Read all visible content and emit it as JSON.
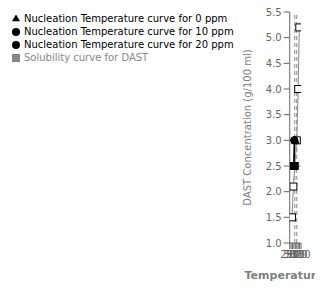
{
  "chart_data": {
    "type": "line",
    "title": "",
    "xlabel": "Temperature (K)",
    "ylabel": "DAST Concentration (g/100 ml)",
    "xlim": [
      290,
      330
    ],
    "ylim": [
      1.0,
      5.5
    ],
    "xticks": [
      290,
      {
        "value": 295,
        "label": ""
      },
      300,
      {
        "value": 305,
        "label": ""
      },
      310,
      {
        "value": 315,
        "label": ""
      },
      320,
      {
        "value": 325,
        "label": ""
      },
      330
    ],
    "yticks": [
      {
        "value": 1.0,
        "label": "1.0"
      },
      1.5,
      {
        "value": 2.0,
        "label": "2.0"
      },
      2.5,
      {
        "value": 3.0,
        "label": "3.0"
      },
      3.5,
      {
        "value": 4.0,
        "label": "4.0"
      },
      4.5,
      {
        "value": 5.0,
        "label": "5.0"
      },
      5.5
    ],
    "legend": "upper left",
    "series": [
      {
        "name": "Solubility curve for DAST",
        "color": "#888888",
        "marker": "square",
        "x": [
          298,
          303,
          308,
          315,
          320,
          324
        ],
        "values": [
          1.5,
          2.1,
          2.5,
          3.0,
          4.0,
          5.2
        ]
      },
      {
        "name": "Nucleation Temperature curve for 0 ppm",
        "color": "#000000",
        "marker": "triangle",
        "x": [
          304.8,
          309.0
        ],
        "values": [
          2.5,
          3.0
        ]
      },
      {
        "name": "Nucleation Temperature curve for 10 ppm",
        "color": "#000000",
        "marker": "circle",
        "x": [
          304.8,
          307.0
        ],
        "values": [
          2.5,
          3.0
        ]
      },
      {
        "name": "Nucleation Temperature curve for 20 ppm",
        "color": "#000000",
        "marker": "circle",
        "x": [
          304.8,
          305.5
        ],
        "values": [
          2.5,
          3.0
        ]
      }
    ],
    "hlines": {
      "values": [
        2.5,
        3.0
      ],
      "color": "#888888",
      "line_style": "dashed"
    },
    "vlines": {
      "values": [
        308.0,
        315.0
      ],
      "color": "#888888",
      "line_style": "dashed"
    }
  }
}
